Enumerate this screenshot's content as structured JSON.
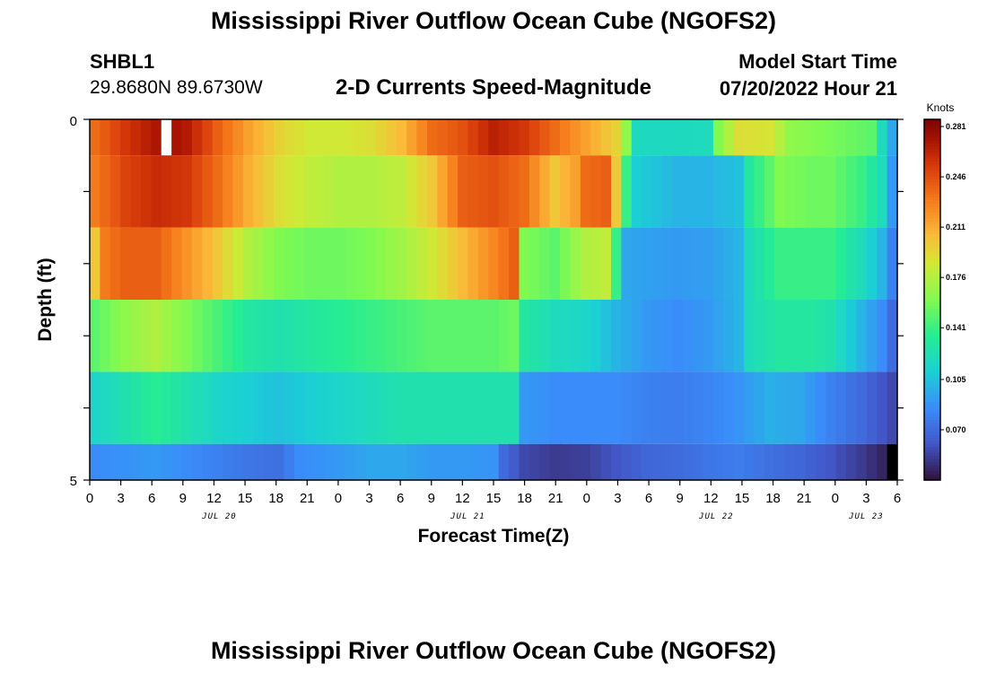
{
  "header": {
    "title": "Mississippi River Outflow Ocean Cube (NGOFS2)",
    "station_id": "SHBL1",
    "station_coords": "29.8680N  89.6730W",
    "subtitle": "2-D Currents Speed-Magnitude",
    "model_start_label": "Model Start Time",
    "model_start_value": "07/20/2022 Hour 21"
  },
  "footer": {
    "title": "Mississippi River Outflow Ocean Cube (NGOFS2)"
  },
  "chart_data": {
    "type": "heatmap",
    "title": "2-D Currents Speed-Magnitude",
    "xlabel": "Forecast Time(Z)",
    "ylabel": "Depth (ft)",
    "ylim": [
      0,
      5
    ],
    "y_tick_labels": [
      "0",
      "5"
    ],
    "x_tick_labels": [
      "0",
      "3",
      "6",
      "9",
      "12",
      "15",
      "18",
      "21",
      "0",
      "3",
      "6",
      "9",
      "12",
      "15",
      "18",
      "21",
      "0",
      "3",
      "6",
      "9",
      "12",
      "15",
      "18",
      "21",
      "0",
      "3",
      "6"
    ],
    "date_labels": [
      {
        "label": "JUL 20",
        "tick_index": 4
      },
      {
        "label": "JUL 21",
        "tick_index": 12
      },
      {
        "label": "JUL 22",
        "tick_index": 20
      },
      {
        "label": "JUL 23",
        "tick_index": 25
      }
    ],
    "colorbar": {
      "units": "Knots",
      "ticks": [
        "0.281",
        "0.246",
        "0.211",
        "0.176",
        "0.141",
        "0.105",
        "0.070"
      ],
      "range": [
        0.035,
        0.286
      ]
    },
    "hours": 79,
    "depth_layers": [
      {
        "depth_range": [
          0,
          0.5
        ],
        "keyframes": [
          [
            0,
            0.235
          ],
          [
            3,
            0.255
          ],
          [
            7,
            0.275
          ],
          [
            9,
            0.268
          ],
          [
            12,
            0.24
          ],
          [
            15,
            0.215
          ],
          [
            18,
            0.195
          ],
          [
            21,
            0.185
          ],
          [
            24,
            0.185
          ],
          [
            27,
            0.19
          ],
          [
            30,
            0.205
          ],
          [
            33,
            0.235
          ],
          [
            36,
            0.245
          ],
          [
            39,
            0.265
          ],
          [
            42,
            0.255
          ],
          [
            45,
            0.235
          ],
          [
            48,
            0.215
          ],
          [
            51,
            0.195
          ],
          [
            52,
            0.165
          ],
          [
            53,
            0.118
          ],
          [
            57,
            0.118
          ],
          [
            60,
            0.12
          ],
          [
            61,
            0.16
          ],
          [
            63,
            0.19
          ],
          [
            66,
            0.188
          ],
          [
            68,
            0.165
          ],
          [
            72,
            0.158
          ],
          [
            76,
            0.15
          ],
          [
            77,
            0.12
          ],
          [
            78,
            0.095
          ]
        ],
        "missing_hours": [
          7
        ]
      },
      {
        "depth_range": [
          0.5,
          1.5
        ],
        "keyframes": [
          [
            0,
            0.23
          ],
          [
            3,
            0.25
          ],
          [
            6,
            0.26
          ],
          [
            9,
            0.255
          ],
          [
            12,
            0.235
          ],
          [
            15,
            0.21
          ],
          [
            18,
            0.19
          ],
          [
            21,
            0.18
          ],
          [
            24,
            0.175
          ],
          [
            27,
            0.175
          ],
          [
            30,
            0.18
          ],
          [
            33,
            0.2
          ],
          [
            36,
            0.24
          ],
          [
            39,
            0.245
          ],
          [
            42,
            0.235
          ],
          [
            45,
            0.2
          ],
          [
            47,
            0.215
          ],
          [
            48,
            0.235
          ],
          [
            50,
            0.24
          ],
          [
            51,
            0.2
          ],
          [
            52,
            0.14
          ],
          [
            53,
            0.11
          ],
          [
            57,
            0.1
          ],
          [
            60,
            0.1
          ],
          [
            63,
            0.105
          ],
          [
            64,
            0.13
          ],
          [
            67,
            0.16
          ],
          [
            70,
            0.155
          ],
          [
            72,
            0.155
          ],
          [
            75,
            0.14
          ],
          [
            77,
            0.12
          ],
          [
            78,
            0.09
          ]
        ]
      },
      {
        "depth_range": [
          1.5,
          2.5
        ],
        "keyframes": [
          [
            0,
            0.2
          ],
          [
            1,
            0.23
          ],
          [
            3,
            0.24
          ],
          [
            6,
            0.24
          ],
          [
            9,
            0.22
          ],
          [
            12,
            0.2
          ],
          [
            15,
            0.175
          ],
          [
            18,
            0.16
          ],
          [
            21,
            0.155
          ],
          [
            24,
            0.155
          ],
          [
            27,
            0.16
          ],
          [
            30,
            0.17
          ],
          [
            33,
            0.185
          ],
          [
            36,
            0.205
          ],
          [
            39,
            0.225
          ],
          [
            41,
            0.24
          ],
          [
            42,
            0.16
          ],
          [
            45,
            0.15
          ],
          [
            48,
            0.175
          ],
          [
            50,
            0.18
          ],
          [
            51,
            0.14
          ],
          [
            52,
            0.095
          ],
          [
            57,
            0.09
          ],
          [
            60,
            0.092
          ],
          [
            63,
            0.1
          ],
          [
            64,
            0.12
          ],
          [
            67,
            0.14
          ],
          [
            70,
            0.14
          ],
          [
            72,
            0.14
          ],
          [
            75,
            0.12
          ],
          [
            77,
            0.1
          ],
          [
            78,
            0.08
          ]
        ]
      },
      {
        "depth_range": [
          2.5,
          3.5
        ],
        "keyframes": [
          [
            0,
            0.15
          ],
          [
            3,
            0.165
          ],
          [
            6,
            0.175
          ],
          [
            9,
            0.16
          ],
          [
            12,
            0.145
          ],
          [
            15,
            0.13
          ],
          [
            18,
            0.125
          ],
          [
            21,
            0.13
          ],
          [
            24,
            0.135
          ],
          [
            27,
            0.14
          ],
          [
            30,
            0.145
          ],
          [
            33,
            0.15
          ],
          [
            36,
            0.15
          ],
          [
            39,
            0.15
          ],
          [
            41,
            0.155
          ],
          [
            42,
            0.13
          ],
          [
            45,
            0.12
          ],
          [
            48,
            0.115
          ],
          [
            51,
            0.1
          ],
          [
            54,
            0.09
          ],
          [
            57,
            0.085
          ],
          [
            60,
            0.09
          ],
          [
            63,
            0.1
          ],
          [
            64,
            0.12
          ],
          [
            67,
            0.13
          ],
          [
            70,
            0.13
          ],
          [
            72,
            0.125
          ],
          [
            75,
            0.1
          ],
          [
            77,
            0.085
          ],
          [
            78,
            0.07
          ]
        ]
      },
      {
        "depth_range": [
          3.5,
          4.5
        ],
        "keyframes": [
          [
            0,
            0.115
          ],
          [
            3,
            0.125
          ],
          [
            6,
            0.135
          ],
          [
            9,
            0.125
          ],
          [
            12,
            0.115
          ],
          [
            15,
            0.11
          ],
          [
            18,
            0.105
          ],
          [
            21,
            0.11
          ],
          [
            24,
            0.115
          ],
          [
            27,
            0.12
          ],
          [
            30,
            0.125
          ],
          [
            33,
            0.125
          ],
          [
            36,
            0.125
          ],
          [
            39,
            0.125
          ],
          [
            41,
            0.125
          ],
          [
            42,
            0.09
          ],
          [
            45,
            0.085
          ],
          [
            48,
            0.085
          ],
          [
            51,
            0.085
          ],
          [
            54,
            0.08
          ],
          [
            57,
            0.078
          ],
          [
            60,
            0.082
          ],
          [
            63,
            0.088
          ],
          [
            66,
            0.098
          ],
          [
            69,
            0.095
          ],
          [
            72,
            0.08
          ],
          [
            75,
            0.07
          ],
          [
            77,
            0.06
          ],
          [
            78,
            0.055
          ]
        ]
      },
      {
        "depth_range": [
          4.5,
          5
        ],
        "keyframes": [
          [
            0,
            0.085
          ],
          [
            6,
            0.09
          ],
          [
            9,
            0.085
          ],
          [
            12,
            0.08
          ],
          [
            15,
            0.075
          ],
          [
            18,
            0.072
          ],
          [
            20,
            0.085
          ],
          [
            24,
            0.09
          ],
          [
            27,
            0.095
          ],
          [
            30,
            0.095
          ],
          [
            33,
            0.09
          ],
          [
            36,
            0.09
          ],
          [
            39,
            0.088
          ],
          [
            40,
            0.07
          ],
          [
            42,
            0.055
          ],
          [
            45,
            0.05
          ],
          [
            48,
            0.052
          ],
          [
            51,
            0.06
          ],
          [
            54,
            0.068
          ],
          [
            57,
            0.07
          ],
          [
            60,
            0.075
          ],
          [
            63,
            0.078
          ],
          [
            66,
            0.072
          ],
          [
            69,
            0.068
          ],
          [
            72,
            0.06
          ],
          [
            75,
            0.05
          ],
          [
            77,
            0.042
          ],
          [
            78,
            0.038
          ]
        ],
        "missing_hours": [
          78
        ]
      }
    ]
  }
}
